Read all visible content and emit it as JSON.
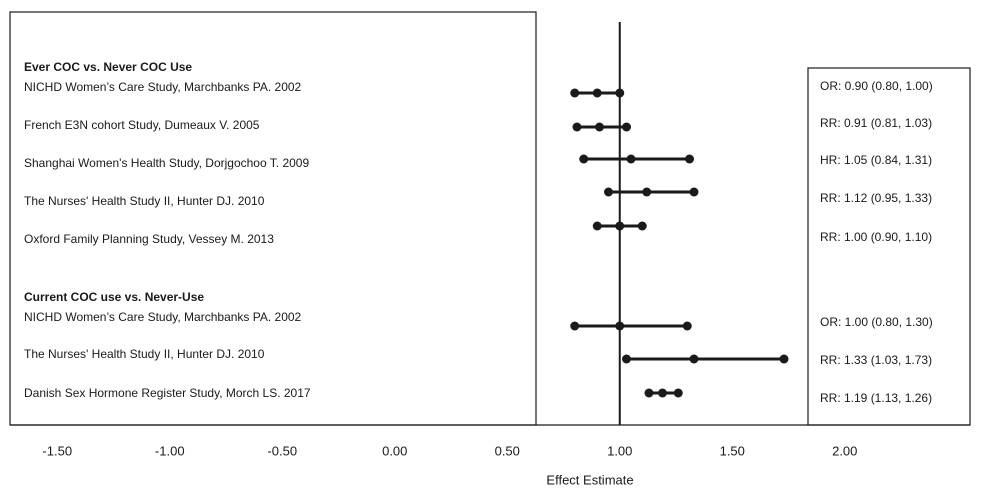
{
  "chart_data": {
    "type": "forest",
    "x_label": "Effect Estimate",
    "xlim": [
      -1.71,
      2.61
    ],
    "xticks": [
      {
        "value": -1.5,
        "label": "-1.50"
      },
      {
        "value": -1.0,
        "label": "-1.00"
      },
      {
        "value": -0.5,
        "label": "-0.50"
      },
      {
        "value": 0.0,
        "label": "0.00"
      },
      {
        "value": 0.5,
        "label": "0.50"
      },
      {
        "value": 1.0,
        "label": "1.00"
      },
      {
        "value": 1.5,
        "label": "1.50"
      },
      {
        "value": 2.0,
        "label": "2.00"
      }
    ],
    "reference_line": 1.0,
    "color": "#1a1a1a",
    "groups": [
      {
        "title": "Ever COC vs. Never COC Use",
        "studies": [
          {
            "name": "NICHD Women’s Care Study, Marchbanks PA. 2002",
            "estimate": 0.9,
            "lower": 0.8,
            "upper": 1.0,
            "value_label": "OR: 0.90 (0.80, 1.00)"
          },
          {
            "name": "French E3N cohort Study, Dumeaux V. 2005",
            "estimate": 0.91,
            "lower": 0.81,
            "upper": 1.03,
            "value_label": "RR: 0.91 (0.81, 1.03)"
          },
          {
            "name": "Shanghai Women's Health Study, Dorjgochoo T. 2009",
            "estimate": 1.05,
            "lower": 0.84,
            "upper": 1.31,
            "value_label": "HR: 1.05 (0.84, 1.31)"
          },
          {
            "name": "The Nurses' Health Study II, Hunter DJ. 2010",
            "estimate": 1.12,
            "lower": 0.95,
            "upper": 1.33,
            "value_label": "RR: 1.12 (0.95, 1.33)"
          },
          {
            "name": "Oxford Family Planning Study, Vessey M. 2013",
            "estimate": 1.0,
            "lower": 0.9,
            "upper": 1.1,
            "value_label": "RR: 1.00 (0.90, 1.10)"
          }
        ]
      },
      {
        "title": "Current COC use vs. Never-Use",
        "studies": [
          {
            "name": "NICHD Women’s Care Study, Marchbanks PA. 2002",
            "estimate": 1.0,
            "lower": 0.8,
            "upper": 1.3,
            "value_label": "OR: 1.00 (0.80, 1.30)"
          },
          {
            "name": "The Nurses' Health Study II, Hunter DJ. 2010",
            "estimate": 1.33,
            "lower": 1.03,
            "upper": 1.73,
            "value_label": "RR: 1.33 (1.03, 1.73)"
          },
          {
            "name": "Danish Sex Hormone Register Study, Morch LS. 2017",
            "estimate": 1.19,
            "lower": 1.13,
            "upper": 1.26,
            "value_label": "RR: 1.19 (1.13, 1.26)"
          }
        ]
      }
    ]
  }
}
